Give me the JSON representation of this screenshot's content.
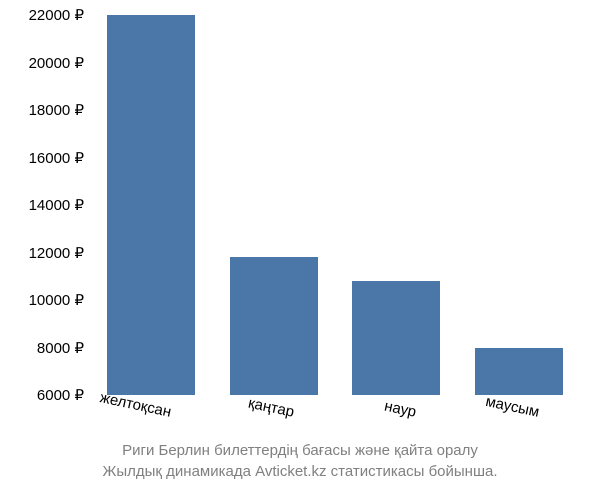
{
  "chart": {
    "type": "bar",
    "categories": [
      "желтоқсан",
      "қаңтар",
      "наур",
      "маусым"
    ],
    "values": [
      22000,
      11800,
      10800,
      8000
    ],
    "bar_color": "#4a76a8",
    "ylim": [
      6000,
      22000
    ],
    "ytick_step": 2000,
    "y_suffix": " ₽",
    "background_color": "#ffffff",
    "bar_width_ratio": 0.72,
    "x_font_size": 15,
    "y_font_size": 15,
    "x_rotation_deg": 12
  },
  "caption": {
    "line1": "Риги Берлин билеттердің бағасы және қайта оралу",
    "line2": "Жылдық динамикада Avticket.kz статистикасы бойынша.",
    "color": "#808080",
    "font_size": 15
  }
}
